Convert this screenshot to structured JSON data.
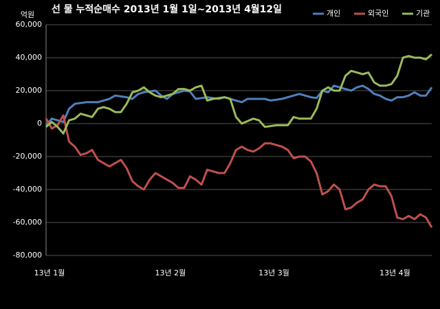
{
  "chart_data": {
    "type": "line",
    "title": "선 물 누적순매수 2013년 1월 1일~2013년 4월12일",
    "y_label": "억원",
    "categories": [
      "13년 1월",
      null,
      null,
      null,
      null,
      null,
      null,
      null,
      null,
      null,
      null,
      null,
      null,
      null,
      null,
      null,
      null,
      null,
      null,
      null,
      null,
      "13년 2월",
      null,
      null,
      null,
      null,
      null,
      null,
      null,
      null,
      null,
      null,
      null,
      null,
      null,
      null,
      null,
      null,
      null,
      "13년 3월",
      null,
      null,
      null,
      null,
      null,
      null,
      null,
      null,
      null,
      null,
      null,
      null,
      null,
      null,
      null,
      null,
      null,
      null,
      null,
      null,
      "13년 4월",
      null,
      null,
      null,
      null,
      null,
      null,
      null
    ],
    "series": [
      {
        "name": "개인",
        "color": "#4f81bd",
        "values": [
          -1000,
          3000,
          2000,
          1000,
          9000,
          12000,
          12500,
          13000,
          13000,
          13000,
          14000,
          15000,
          17000,
          16500,
          16000,
          15000,
          18000,
          19000,
          19500,
          20000,
          17000,
          15000,
          18000,
          19000,
          20000,
          19500,
          15000,
          15500,
          16000,
          15500,
          15000,
          16000,
          15000,
          14000,
          13000,
          15000,
          15000,
          15000,
          15000,
          14000,
          14500,
          15000,
          16000,
          17000,
          18000,
          17000,
          16000,
          15500,
          20000,
          19000,
          23000,
          22000,
          21000,
          20000,
          22000,
          23000,
          21000,
          18000,
          17000,
          15000,
          14000,
          16000,
          16000,
          17000,
          19000,
          17000,
          17000,
          22000
        ]
      },
      {
        "name": "외국인",
        "color": "#c0504d",
        "values": [
          3000,
          -3000,
          -1000,
          5000,
          -11000,
          -14000,
          -19000,
          -18000,
          -16000,
          -22000,
          -24000,
          -26000,
          -24000,
          -22000,
          -27000,
          -35000,
          -38000,
          -40000,
          -34000,
          -30000,
          -32000,
          -34000,
          -36000,
          -39000,
          -39000,
          -32000,
          -34000,
          -37000,
          -28000,
          -29000,
          -30000,
          -30000,
          -24000,
          -16000,
          -14000,
          -16000,
          -17000,
          -15000,
          -12000,
          -12000,
          -13000,
          -14000,
          -16000,
          -21000,
          -20000,
          -20000,
          -23000,
          -30000,
          -43000,
          -41000,
          -37000,
          -40000,
          -52000,
          -51000,
          -48000,
          -46000,
          -40000,
          -37000,
          -38000,
          -38000,
          -44000,
          -57000,
          -58000,
          -56000,
          -58000,
          -55000,
          -57000,
          -63000
        ]
      },
      {
        "name": "기관",
        "color": "#9bbb59",
        "values": [
          -2000,
          1000,
          -2000,
          -6000,
          2000,
          3000,
          6000,
          5000,
          4000,
          9000,
          10000,
          9000,
          7000,
          7000,
          12000,
          19000,
          20000,
          22000,
          19000,
          17000,
          16000,
          17000,
          18000,
          21000,
          21000,
          20000,
          22000,
          23000,
          14000,
          15000,
          15500,
          16000,
          15000,
          4000,
          0,
          1500,
          3000,
          2000,
          -2000,
          -1500,
          -1000,
          -1000,
          -1000,
          4000,
          3000,
          3000,
          3000,
          9000,
          20000,
          22000,
          20000,
          20000,
          29000,
          32000,
          31000,
          30000,
          31000,
          25000,
          23000,
          23000,
          24000,
          29000,
          40000,
          41000,
          40000,
          40000,
          39000,
          42000
        ]
      }
    ],
    "ylim": [
      -80000,
      60000
    ],
    "yticks": [
      {
        "value": -80000,
        "label": "-80,000"
      },
      {
        "value": -60000,
        "label": "-60,000"
      },
      {
        "value": -40000,
        "label": "-40,000"
      },
      {
        "value": -20000,
        "label": "-20,000"
      },
      0,
      {
        "value": 20000,
        "label": "20,000"
      },
      {
        "value": 40000,
        "label": "40,000"
      },
      {
        "value": 60000,
        "label": "60,000"
      }
    ],
    "grid": true,
    "legend": "top-right"
  }
}
